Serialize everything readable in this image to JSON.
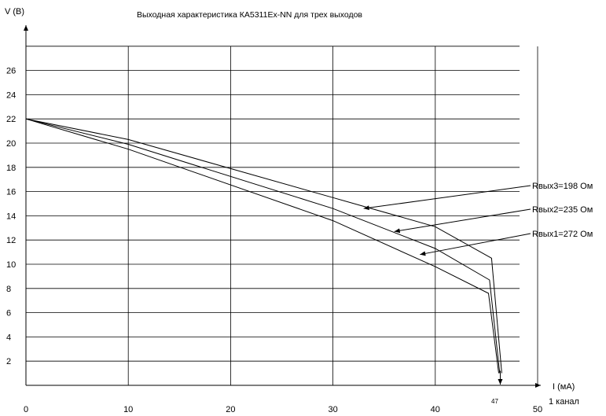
{
  "chart_data": {
    "type": "line",
    "title": "Выходная характеристика КА5311Ex-NN для трех выходов",
    "ylabel": "V (В)",
    "xlabel": "I (мА)",
    "xlabel_sub": "1 канал",
    "xlim": [
      0,
      50
    ],
    "ylim": [
      0,
      28
    ],
    "x_ticks": [
      "0",
      "10",
      "20",
      "30",
      "40",
      "50"
    ],
    "y_ticks": [
      "2",
      "4",
      "6",
      "8",
      "10",
      "12",
      "14",
      "16",
      "18",
      "20",
      "22",
      "24",
      "26"
    ],
    "extra_x_tick": "47",
    "grid": true,
    "line_color": "#000000",
    "series": [
      {
        "name": "Rвых3=198 Ом",
        "points": [
          [
            0,
            22
          ],
          [
            10,
            20.3
          ],
          [
            30,
            15.5
          ],
          [
            40,
            13.1
          ],
          [
            45.5,
            10.5
          ],
          [
            46.5,
            1
          ]
        ]
      },
      {
        "name": "Rвых2=235 Ом",
        "points": [
          [
            0,
            22
          ],
          [
            10,
            19.9
          ],
          [
            30,
            14.6
          ],
          [
            40,
            11.3
          ],
          [
            45.3,
            8.7
          ],
          [
            46.3,
            1
          ]
        ]
      },
      {
        "name": "Rвых1=272 Ом",
        "points": [
          [
            0,
            22
          ],
          [
            10,
            19.5
          ],
          [
            30,
            13.6
          ],
          [
            40,
            9.8
          ],
          [
            45.2,
            7.6
          ],
          [
            46.2,
            1
          ]
        ]
      }
    ],
    "annotations": [
      {
        "text": "Rвых3=198 Ом",
        "target": [
          33,
          14.6
        ]
      },
      {
        "text": "Rвых2=235 Ом",
        "target": [
          36,
          12.7
        ]
      },
      {
        "text": "Rвых1=272 Ом",
        "target": [
          38.5,
          10.8
        ]
      }
    ]
  }
}
